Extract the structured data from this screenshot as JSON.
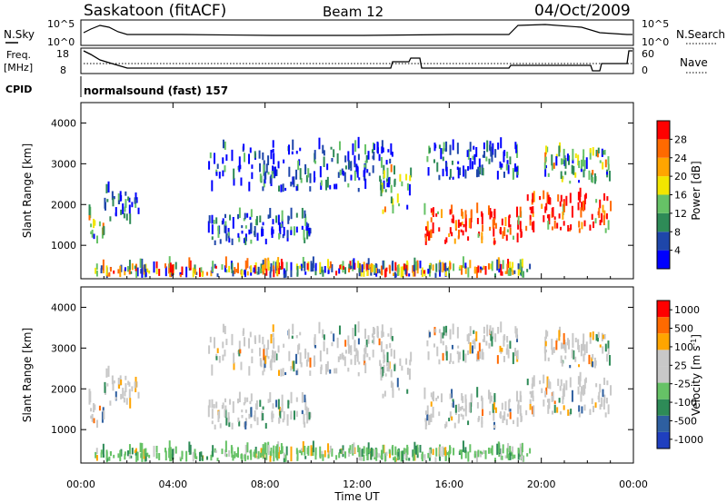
{
  "header": {
    "site_title": "Saskatoon (fitACF)",
    "beam": "Beam 12",
    "date": "04/Oct/2009"
  },
  "panels_top": {
    "nsky_label": "N.Sky",
    "nsky_ticks": [
      "10^5",
      "10^0"
    ],
    "nsearch_label": "N.Search",
    "nsearch_ticks": [
      "10^5",
      "10^0"
    ],
    "freq_label_1": "Freq.",
    "freq_label_2": "[MHz]",
    "freq_ticks": [
      "18",
      "8"
    ],
    "nave_label": "Nave",
    "nave_ticks": [
      "60",
      "0"
    ],
    "cpid_label": "CPID",
    "cpid_value": "normalsound (fast) 157"
  },
  "colors": {
    "power_scale": [
      "#0000ff",
      "#1e46aa",
      "#2e8b57",
      "#66c266",
      "#f2e600",
      "#ffa500",
      "#ff6a00",
      "#ff0000"
    ],
    "velocity_scale": [
      "#1f3fbf",
      "#2e5fa0",
      "#2e8b57",
      "#66c266",
      "#c8c8c8",
      "#c8c8c8",
      "#ffa500",
      "#ff6a00",
      "#ff0000"
    ]
  },
  "chart_data": [
    {
      "type": "heatmap",
      "name": "power",
      "ylabel": "Slant Range [km]",
      "y_ticks": [
        "1000",
        "2000",
        "3000",
        "4000"
      ],
      "ylim": [
        180,
        4500
      ],
      "colorbar_label": "Power [dB]",
      "colorbar_ticks": [
        "4",
        "8",
        "12",
        "16",
        "20",
        "24",
        "28"
      ],
      "x_ticks": [
        "00:00",
        "04:00",
        "08:00",
        "12:00",
        "16:00",
        "20:00",
        "00:00"
      ],
      "xlim": [
        "00:00",
        "24:00"
      ],
      "echo_regions": [
        {
          "t": [
            0.3,
            1.0
          ],
          "range": [
            1000,
            1800
          ],
          "level": "medium"
        },
        {
          "t": [
            1.0,
            2.5
          ],
          "range": [
            1500,
            2300
          ],
          "level": "low"
        },
        {
          "t": [
            5.5,
            10.0
          ],
          "range": [
            1000,
            1700
          ],
          "level": "low"
        },
        {
          "t": [
            5.5,
            13.5
          ],
          "range": [
            2300,
            3400
          ],
          "level": "low"
        },
        {
          "t": [
            13.0,
            14.3
          ],
          "range": [
            1700,
            2800
          ],
          "level": "medium"
        },
        {
          "t": [
            14.8,
            19.2
          ],
          "range": [
            1000,
            1800
          ],
          "level": "high"
        },
        {
          "t": [
            19.2,
            23.0
          ],
          "range": [
            1300,
            2200
          ],
          "level": "high"
        },
        {
          "t": [
            15.0,
            19.0
          ],
          "range": [
            2600,
            3400
          ],
          "level": "low"
        },
        {
          "t": [
            20.0,
            23.0
          ],
          "range": [
            2500,
            3300
          ],
          "level": "medium"
        },
        {
          "t": [
            0.5,
            19.5
          ],
          "range": [
            200,
            450
          ],
          "level": "mixed"
        }
      ]
    },
    {
      "type": "heatmap",
      "name": "velocity",
      "ylabel": "Slant Range [km]",
      "y_ticks": [
        "1000",
        "2000",
        "3000",
        "4000"
      ],
      "ylim": [
        180,
        4500
      ],
      "colorbar_label": "Velocity [m s^-1]",
      "colorbar_ticks": [
        "1000",
        "500",
        "100",
        "25",
        "-25",
        "-100",
        "-500",
        "-1000"
      ],
      "x_ticks": [
        "00:00",
        "04:00",
        "08:00",
        "12:00",
        "16:00",
        "20:00",
        "00:00"
      ],
      "xlabel": "Time UT",
      "xlim": [
        "00:00",
        "24:00"
      ]
    }
  ]
}
